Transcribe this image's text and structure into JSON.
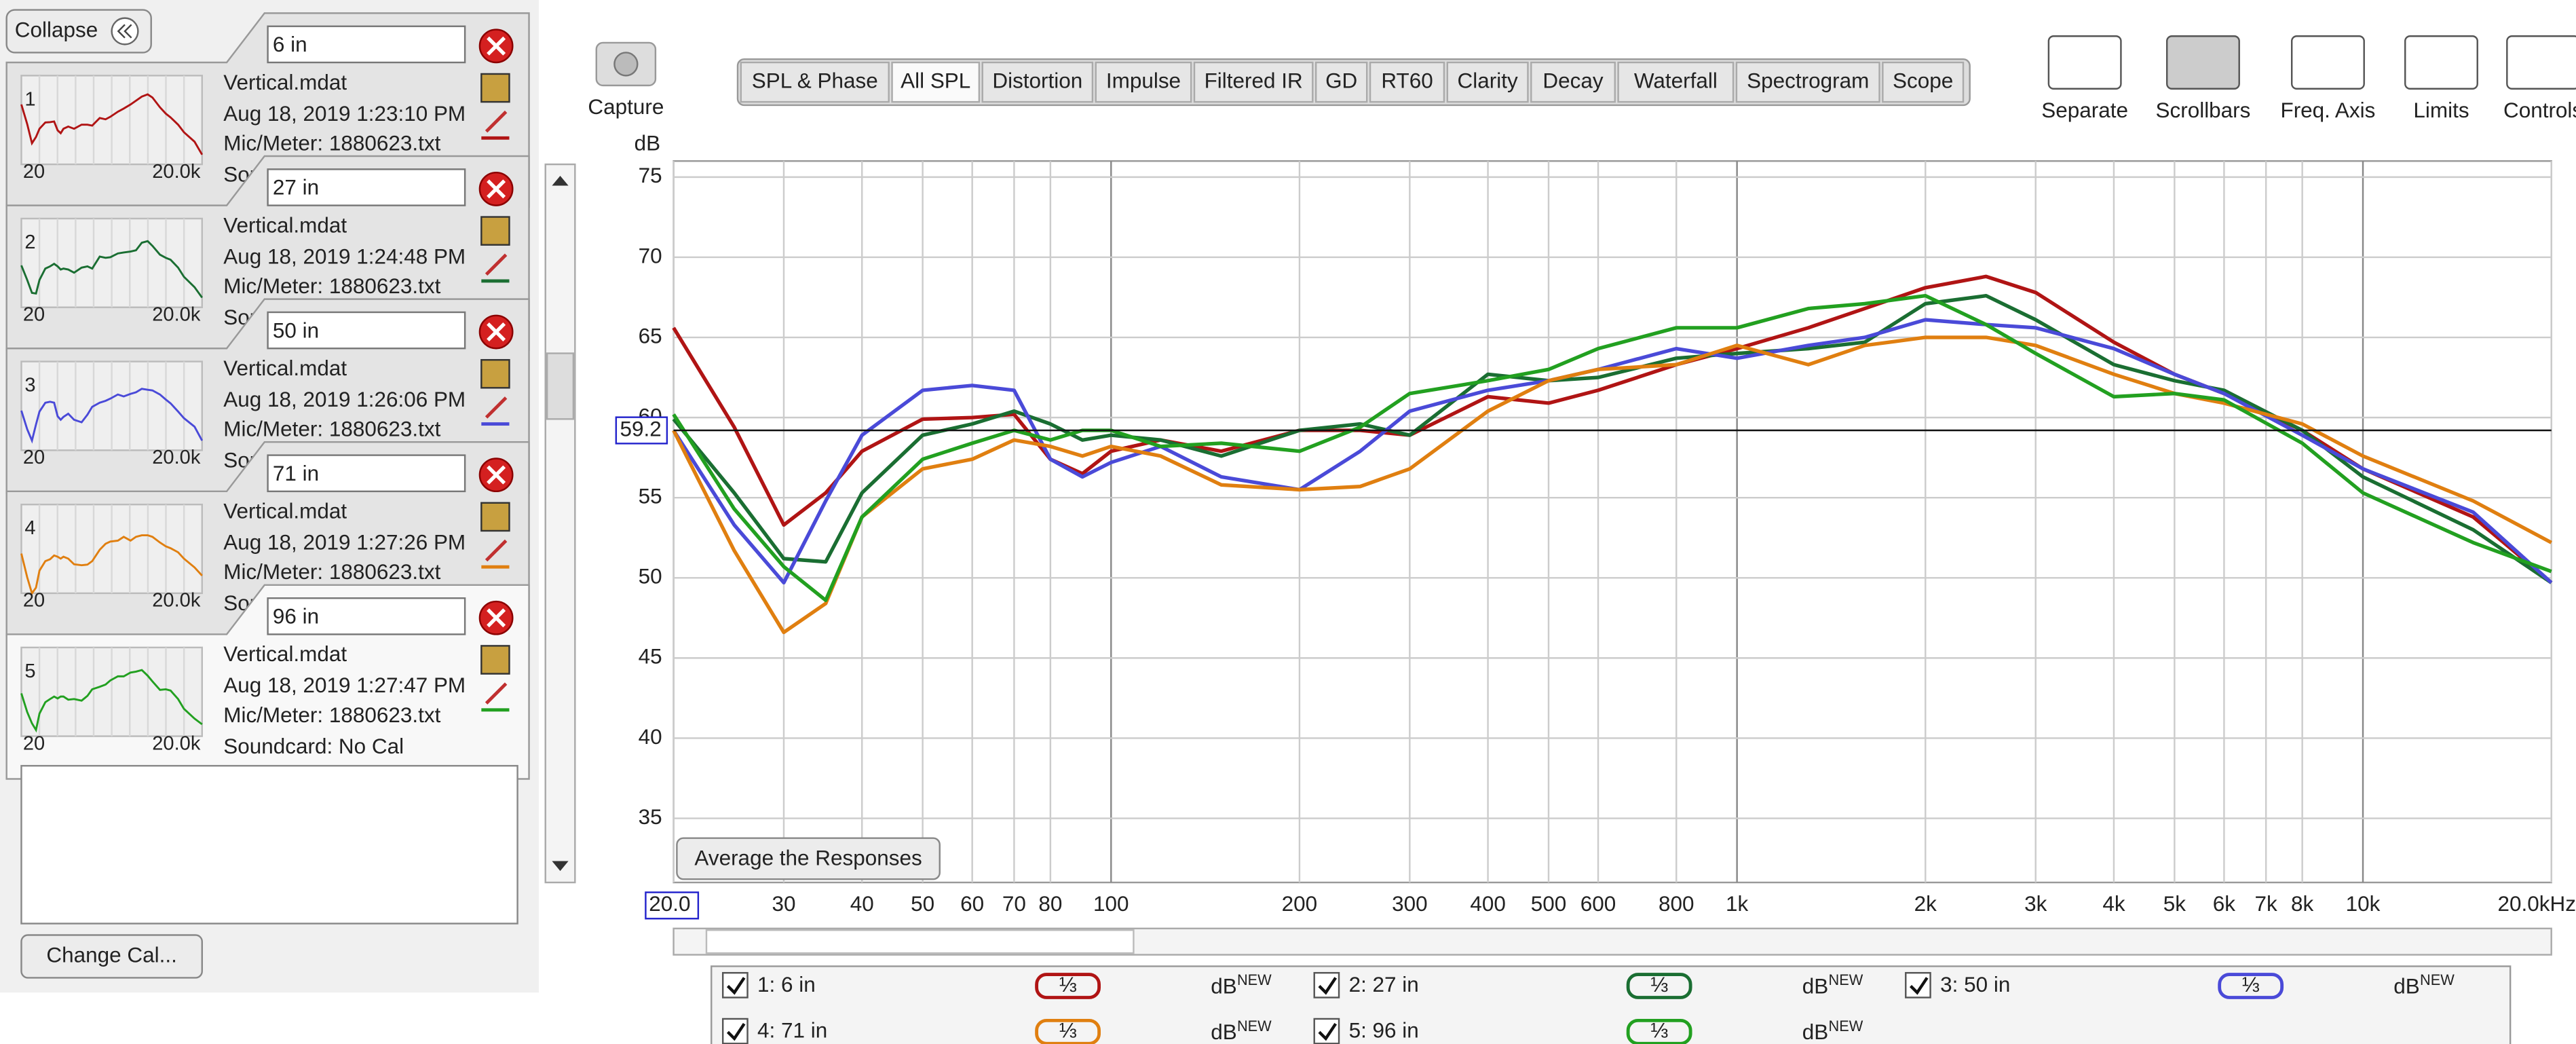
{
  "panel": {
    "collapse": "Collapse",
    "measurements": [
      {
        "index_label": "1",
        "name": "6 in",
        "file": "Vertical.mdat",
        "date": "Aug 18, 2019 1:23:10 PM",
        "mic": "Mic/Meter: 1880623.txt",
        "soundcard": "Soundcard: No Cal",
        "thumb_start": "20",
        "thumb_end": "20.0k"
      },
      {
        "index_label": "2",
        "name": "27 in",
        "file": "Vertical.mdat",
        "date": "Aug 18, 2019 1:24:48 PM",
        "mic": "Mic/Meter: 1880623.txt",
        "soundcard": "Soundcard: No Cal",
        "thumb_start": "20",
        "thumb_end": "20.0k"
      },
      {
        "index_label": "3",
        "name": "50 in",
        "file": "Vertical.mdat",
        "date": "Aug 18, 2019 1:26:06 PM",
        "mic": "Mic/Meter: 1880623.txt",
        "soundcard": "Soundcard: No Cal",
        "thumb_start": "20",
        "thumb_end": "20.0k"
      },
      {
        "index_label": "4",
        "name": "71 in",
        "file": "Vertical.mdat",
        "date": "Aug 18, 2019 1:27:26 PM",
        "mic": "Mic/Meter: 1880623.txt",
        "soundcard": "Soundcard: No Cal",
        "thumb_start": "20",
        "thumb_end": "20.0k"
      },
      {
        "index_label": "5",
        "name": "96 in",
        "file": "Vertical.mdat",
        "date": "Aug 18, 2019 1:27:47 PM",
        "mic": "Mic/Meter: 1880623.txt",
        "soundcard": "Soundcard: No Cal",
        "thumb_start": "20",
        "thumb_end": "20.0k"
      }
    ],
    "change_cal": "Change Cal..."
  },
  "capture": "Capture",
  "tabs": [
    "SPL & Phase",
    "All SPL",
    "Distortion",
    "Impulse",
    "Filtered IR",
    "GD",
    "RT60",
    "Clarity",
    "Decay",
    "Waterfall",
    "Spectrogram",
    "Scope"
  ],
  "selected_tab": "All SPL",
  "tools": [
    "Separate",
    "Scrollbars",
    "Freq. Axis",
    "Limits",
    "Controls"
  ],
  "average_button": "Average the Responses",
  "legend_extras": {
    "smoothing": "⅓",
    "unit": "dB",
    "badge": "NEW"
  },
  "chart_data": {
    "type": "line",
    "y_label": "dB",
    "log_x": true,
    "grid": true,
    "x": [
      20,
      25,
      30,
      35,
      40,
      50,
      60,
      70,
      80,
      90,
      100,
      120,
      150,
      200,
      250,
      300,
      400,
      500,
      600,
      800,
      1000,
      1300,
      1600,
      2000,
      2500,
      3000,
      4000,
      5000,
      6000,
      8000,
      10000,
      15000,
      20000
    ],
    "xlim": [
      20,
      20000
    ],
    "xticks": [
      {
        "value": 20,
        "label": "20.0"
      },
      30,
      40,
      50,
      60,
      70,
      80,
      100,
      200,
      300,
      400,
      500,
      600,
      800,
      {
        "value": 1000,
        "label": "1k"
      },
      {
        "value": 2000,
        "label": "2k"
      },
      {
        "value": 3000,
        "label": "3k"
      },
      {
        "value": 4000,
        "label": "4k"
      },
      {
        "value": 5000,
        "label": "5k"
      },
      {
        "value": 6000,
        "label": "6k"
      },
      {
        "value": 7000,
        "label": "7k"
      },
      {
        "value": 8000,
        "label": "8k"
      },
      {
        "value": 10000,
        "label": "10k"
      },
      {
        "value": 20000,
        "label": "20.0kHz"
      }
    ],
    "ylim": [
      31,
      76
    ],
    "yticks": [
      35,
      40,
      45,
      50,
      55,
      60,
      65,
      70,
      75
    ],
    "cursor_value": 59.2,
    "series": [
      {
        "name": "1: 6 in",
        "color": "#b01414",
        "values": [
          65.6,
          59.4,
          53.3,
          55.3,
          57.9,
          59.9,
          60,
          60.2,
          57.4,
          56.5,
          57.9,
          58.6,
          57.9,
          59.2,
          59.2,
          58.9,
          61.3,
          60.9,
          61.7,
          63.3,
          64.3,
          65.6,
          66.8,
          68.1,
          68.8,
          67.8,
          64.7,
          62.7,
          61.5,
          59.2,
          56.8,
          53.8,
          49.7
        ]
      },
      {
        "name": "2: 27 in",
        "color": "#1a6e32",
        "values": [
          59.9,
          55.3,
          51.2,
          51,
          55.3,
          58.9,
          59.6,
          60.4,
          59.6,
          58.6,
          58.9,
          58.6,
          57.6,
          59.2,
          59.6,
          58.9,
          62.7,
          62.3,
          62.5,
          63.7,
          64,
          64.3,
          64.7,
          67.1,
          67.6,
          66.1,
          63.3,
          62.3,
          61.7,
          59.2,
          56.3,
          53,
          49.7
        ]
      },
      {
        "name": "3: 50 in",
        "color": "#4a4ad8",
        "values": [
          59.2,
          53.3,
          49.7,
          54.8,
          58.9,
          61.7,
          62,
          61.7,
          57.4,
          56.3,
          57.2,
          58.2,
          56.3,
          55.5,
          57.9,
          60.4,
          61.7,
          62.3,
          63,
          64.3,
          63.7,
          64.5,
          65,
          66.1,
          65.8,
          65.6,
          64.3,
          62.7,
          61.5,
          58.9,
          56.8,
          54.1,
          49.7
        ]
      },
      {
        "name": "4: 71 in",
        "color": "#e07f10",
        "values": [
          59.2,
          51.7,
          46.6,
          48.4,
          53.8,
          56.8,
          57.4,
          58.6,
          58.2,
          57.6,
          58.2,
          57.6,
          55.8,
          55.5,
          55.7,
          56.8,
          60.4,
          62.3,
          63,
          63.3,
          64.5,
          63.3,
          64.5,
          65,
          65,
          64.5,
          62.7,
          61.5,
          60.9,
          59.6,
          57.6,
          54.8,
          52.2
        ]
      },
      {
        "name": "5: 96 in",
        "color": "#22a020",
        "values": [
          60.2,
          54.3,
          50.7,
          48.6,
          53.8,
          57.4,
          58.4,
          59.2,
          58.6,
          59.2,
          59.2,
          58.2,
          58.4,
          57.9,
          59.4,
          61.5,
          62.3,
          63,
          64.3,
          65.6,
          65.6,
          66.8,
          67.1,
          67.6,
          65.8,
          64,
          61.3,
          61.5,
          61.1,
          58.4,
          55.3,
          52.2,
          50.4
        ]
      }
    ]
  }
}
